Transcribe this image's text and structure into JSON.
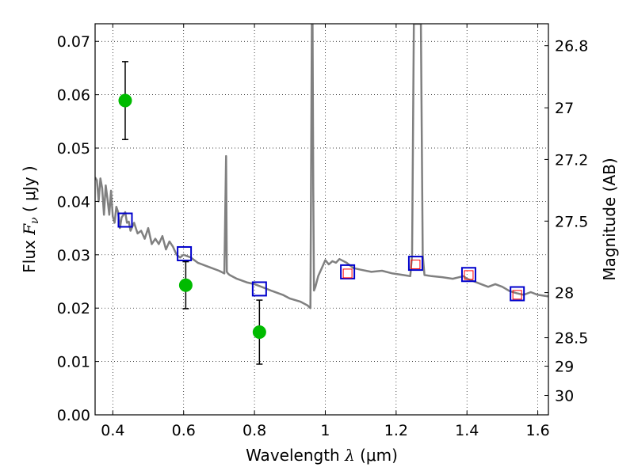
{
  "chart_data": {
    "type": "scatter",
    "xlabel_prefix": "Wavelength",
    "xlabel_symbol": "λ",
    "xlabel_unit": "(μm)",
    "ylabel_prefix": "Flux",
    "ylabel_symbol": "F",
    "ylabel_subscript": "ν",
    "ylabel_unit": "( μJy )",
    "y2label": "Magnitude (AB)",
    "xlim": [
      0.35,
      1.63
    ],
    "ylim": [
      0.0,
      0.0733
    ],
    "grid": true,
    "x_ticks": [
      0.4,
      0.6,
      0.8,
      1.0,
      1.2,
      1.4,
      1.6
    ],
    "x_tick_labels": [
      "0.4",
      "0.6",
      "0.8",
      "1",
      "1.2",
      "1.4",
      "1.6"
    ],
    "y_ticks": [
      0.0,
      0.01,
      0.02,
      0.03,
      0.04,
      0.05,
      0.06,
      0.07
    ],
    "y_tick_labels": [
      "0.00",
      "0.01",
      "0.02",
      "0.03",
      "0.04",
      "0.05",
      "0.06",
      "0.07"
    ],
    "y2_ticks": [
      26.8,
      27.0,
      27.2,
      27.5,
      28.0,
      28.5,
      29.0,
      30.0
    ],
    "y2_tick_labels": [
      "26.8",
      "27",
      "27.2",
      "27.5",
      "28",
      "28.5",
      "29",
      "30"
    ],
    "series": [
      {
        "kind": "line",
        "color": "#808080",
        "x": [
          0.35,
          0.355,
          0.36,
          0.365,
          0.37,
          0.375,
          0.38,
          0.385,
          0.39,
          0.395,
          0.4,
          0.405,
          0.41,
          0.415,
          0.42,
          0.425,
          0.43,
          0.435,
          0.44,
          0.445,
          0.45,
          0.46,
          0.47,
          0.48,
          0.49,
          0.5,
          0.51,
          0.52,
          0.53,
          0.54,
          0.55,
          0.56,
          0.57,
          0.58,
          0.59,
          0.6,
          0.62,
          0.64,
          0.66,
          0.68,
          0.7,
          0.715,
          0.72,
          0.722,
          0.725,
          0.73,
          0.75,
          0.78,
          0.8,
          0.82,
          0.85,
          0.88,
          0.9,
          0.93,
          0.95,
          0.958,
          0.962,
          0.964,
          0.966,
          0.968,
          0.972,
          0.98,
          0.99,
          1.0,
          1.01,
          1.02,
          1.03,
          1.04,
          1.06,
          1.08,
          1.1,
          1.13,
          1.16,
          1.19,
          1.22,
          1.24,
          1.245,
          1.25,
          1.255,
          1.26,
          1.27,
          1.275,
          1.28,
          1.3,
          1.33,
          1.36,
          1.39,
          1.4,
          1.42,
          1.44,
          1.46,
          1.48,
          1.5,
          1.52,
          1.54,
          1.56,
          1.58,
          1.6,
          1.63
        ],
        "y": [
          0.0445,
          0.044,
          0.04,
          0.0443,
          0.0425,
          0.0375,
          0.043,
          0.0405,
          0.0375,
          0.042,
          0.0372,
          0.036,
          0.039,
          0.038,
          0.035,
          0.037,
          0.0375,
          0.038,
          0.036,
          0.0362,
          0.0345,
          0.036,
          0.034,
          0.0345,
          0.033,
          0.035,
          0.032,
          0.033,
          0.032,
          0.0335,
          0.031,
          0.0325,
          0.0315,
          0.03,
          0.0295,
          0.03,
          0.0295,
          0.0285,
          0.028,
          0.0275,
          0.027,
          0.0265,
          0.0485,
          0.0268,
          0.0265,
          0.0262,
          0.0255,
          0.0248,
          0.0245,
          0.024,
          0.0232,
          0.0225,
          0.0218,
          0.0212,
          0.0205,
          0.02,
          0.0733,
          0.0733,
          0.042,
          0.0233,
          0.024,
          0.026,
          0.0275,
          0.029,
          0.0282,
          0.0288,
          0.0285,
          0.0292,
          0.0285,
          0.0275,
          0.0272,
          0.0268,
          0.027,
          0.0265,
          0.0262,
          0.026,
          0.03,
          0.0733,
          0.0733,
          0.0733,
          0.0733,
          0.03,
          0.0262,
          0.026,
          0.0258,
          0.0255,
          0.026,
          0.0255,
          0.025,
          0.0245,
          0.024,
          0.0245,
          0.024,
          0.0232,
          0.0228,
          0.0225,
          0.023,
          0.0225,
          0.0222
        ]
      },
      {
        "kind": "markers",
        "marker": "square",
        "color": "#0000cc",
        "x": [
          0.435,
          0.602,
          0.814,
          1.063,
          1.255,
          1.405,
          1.542
        ],
        "y": [
          0.0365,
          0.0302,
          0.0236,
          0.0268,
          0.0284,
          0.0263,
          0.0227
        ]
      },
      {
        "kind": "markers",
        "marker": "small-square",
        "color": "#ff0000",
        "x": [
          1.063,
          1.255,
          1.405,
          1.542
        ],
        "y": [
          0.0265,
          0.0282,
          0.0262,
          0.0225
        ]
      },
      {
        "kind": "errorbar",
        "marker": "circle",
        "color": "#00bb00",
        "x": [
          0.435,
          0.606,
          0.814
        ],
        "y": [
          0.0589,
          0.0243,
          0.0155
        ],
        "yerr": [
          0.0073,
          0.0044,
          0.006
        ]
      }
    ]
  }
}
